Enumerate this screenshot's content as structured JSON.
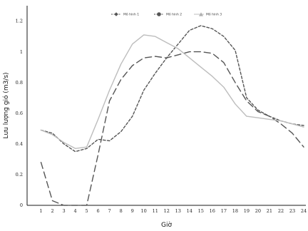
{
  "chart_data": {
    "type": "line",
    "title": "",
    "xlabel": "Giờ",
    "ylabel": "Lưu lượng gió (m3/s)",
    "xlim": [
      1,
      24
    ],
    "ylim": [
      0,
      1.3
    ],
    "grid": false,
    "legend_position": "top-center",
    "categories": [
      "1",
      "2",
      "3",
      "4",
      "5",
      "6",
      "7",
      "8",
      "9",
      "10",
      "11",
      "12",
      "13",
      "14",
      "15",
      "16",
      "17",
      "18",
      "19",
      "20",
      "21",
      "22",
      "23",
      "24"
    ],
    "y_ticks": [
      "0",
      "0.2",
      "0.4",
      "0.6",
      "0.8",
      "1",
      "1.2"
    ],
    "series": [
      {
        "name": "Mô hình 1",
        "style": "long-dash",
        "color": "#555555",
        "values": [
          0.28,
          0.03,
          0.0,
          0.0,
          0.0,
          0.33,
          0.68,
          0.82,
          0.91,
          0.96,
          0.97,
          0.96,
          0.98,
          1.0,
          1.0,
          0.99,
          0.93,
          0.8,
          0.68,
          0.61,
          0.58,
          0.53,
          0.47,
          0.38
        ]
      },
      {
        "name": "Mô hình 2",
        "style": "short-dash",
        "color": "#555555",
        "values": [
          0.49,
          0.47,
          0.4,
          0.35,
          0.37,
          0.43,
          0.42,
          0.48,
          0.58,
          0.75,
          0.86,
          0.96,
          1.05,
          1.14,
          1.17,
          1.15,
          1.1,
          1.01,
          0.7,
          0.62,
          0.58,
          0.55,
          0.53,
          0.52
        ]
      },
      {
        "name": "Mô hình 3",
        "style": "solid",
        "color": "#bdbdbd",
        "values": [
          0.49,
          0.46,
          0.41,
          0.37,
          0.38,
          0.56,
          0.75,
          0.92,
          1.05,
          1.11,
          1.1,
          1.06,
          1.02,
          0.96,
          0.9,
          0.84,
          0.77,
          0.66,
          0.58,
          0.57,
          0.56,
          0.55,
          0.53,
          0.51
        ]
      }
    ]
  }
}
